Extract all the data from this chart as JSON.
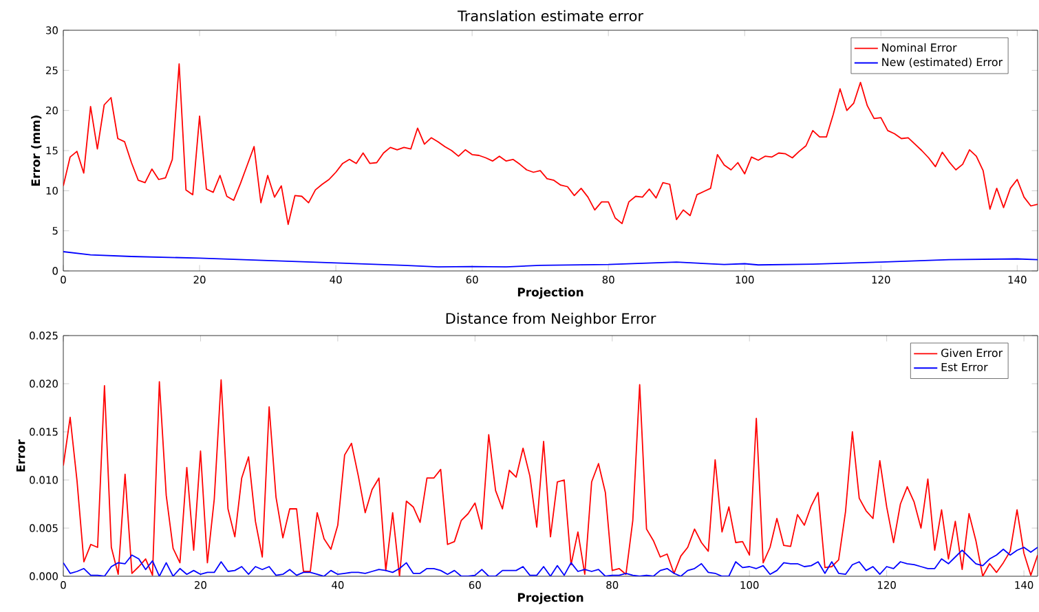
{
  "chart_data": [
    {
      "type": "line",
      "title": "Translation estimate error",
      "xlabel": "Projection",
      "ylabel": "Error (mm)",
      "xlim": [
        0,
        143
      ],
      "ylim": [
        0,
        30
      ],
      "xticks": [
        0,
        20,
        40,
        60,
        80,
        100,
        120,
        140
      ],
      "yticks": [
        0,
        5,
        10,
        15,
        20,
        25,
        30
      ],
      "legend": "top right",
      "grid": false,
      "x": [
        0,
        1,
        2,
        3,
        4,
        5,
        6,
        7,
        8,
        9,
        10,
        11,
        12,
        13,
        14,
        15,
        16,
        17,
        18,
        19,
        20,
        21,
        22,
        23,
        24,
        25,
        26,
        27,
        28,
        29,
        30,
        31,
        32,
        33,
        34,
        35,
        36,
        37,
        38,
        39,
        40,
        41,
        42,
        43,
        44,
        45,
        46,
        47,
        48,
        49,
        50,
        51,
        52,
        53,
        54,
        55,
        56,
        57,
        58,
        59,
        60,
        61,
        62,
        63,
        64,
        65,
        66,
        67,
        68,
        69,
        70,
        71,
        72,
        73,
        74,
        75,
        76,
        77,
        78,
        79,
        80,
        81,
        82,
        83,
        84,
        85,
        86,
        87,
        88,
        89,
        90,
        91,
        92,
        93,
        94,
        95,
        96,
        97,
        98,
        99,
        100,
        101,
        102,
        103,
        104,
        105,
        106,
        107,
        108,
        109,
        110,
        111,
        112,
        113,
        114,
        115,
        116,
        117,
        118,
        119,
        120,
        121,
        122,
        123,
        124,
        125,
        126,
        127,
        128,
        129,
        130,
        131,
        132,
        133,
        134,
        135,
        136,
        137,
        138,
        139,
        140,
        141,
        142,
        143
      ],
      "series": [
        {
          "name": "Nominal Error",
          "color": "#ff0000",
          "values": [
            10.6,
            14.2,
            14.9,
            12.2,
            20.5,
            15.2,
            20.7,
            21.6,
            16.5,
            16.1,
            13.5,
            11.3,
            11.0,
            12.7,
            11.4,
            11.6,
            13.9,
            25.8,
            10.1,
            9.5,
            19.3,
            10.2,
            9.8,
            11.9,
            9.3,
            8.8,
            10.9,
            13.2,
            15.5,
            8.5,
            11.9,
            9.2,
            10.6,
            5.8,
            9.4,
            9.3,
            8.5,
            10.1,
            10.8,
            11.4,
            12.3,
            13.4,
            13.9,
            13.4,
            14.7,
            13.4,
            13.5,
            14.7,
            15.4,
            15.1,
            15.4,
            15.2,
            17.8,
            15.8,
            16.6,
            16.1,
            15.5,
            15.0,
            14.3,
            15.1,
            14.5,
            14.4,
            14.1,
            13.7,
            14.3,
            13.7,
            13.9,
            13.3,
            12.6,
            12.3,
            12.5,
            11.5,
            11.3,
            10.7,
            10.5,
            9.4,
            10.3,
            9.2,
            7.6,
            8.6,
            8.6,
            6.6,
            5.9,
            8.6,
            9.3,
            9.2,
            10.2,
            9.1,
            11.0,
            10.8,
            6.4,
            7.6,
            6.9,
            9.5,
            9.9,
            10.3,
            14.5,
            13.2,
            12.6,
            13.5,
            12.1,
            14.2,
            13.8,
            14.3,
            14.2,
            14.7,
            14.6,
            14.1,
            14.9,
            15.6,
            17.5,
            16.7,
            16.7,
            19.5,
            22.7,
            20.0,
            20.9,
            23.5,
            20.6,
            19.0,
            19.1,
            17.5,
            17.1,
            16.5,
            16.6,
            15.8,
            15.0,
            14.1,
            13.0,
            14.8,
            13.6,
            12.6,
            13.3,
            15.1,
            14.3,
            12.5,
            7.7,
            10.3,
            7.9,
            10.3,
            11.4,
            9.2,
            8.1,
            8.3
          ]
        },
        {
          "name": "New (estimated) Error",
          "color": "#0000ff",
          "x": [
            0,
            4,
            10,
            20,
            30,
            40,
            50,
            55,
            60,
            65,
            70,
            80,
            90,
            97,
            100,
            102,
            110,
            120,
            130,
            140,
            143
          ],
          "values": [
            2.4,
            2.0,
            1.8,
            1.6,
            1.3,
            1.0,
            0.7,
            0.5,
            0.55,
            0.5,
            0.7,
            0.8,
            1.1,
            0.8,
            0.9,
            0.75,
            0.85,
            1.1,
            1.4,
            1.5,
            1.4
          ]
        }
      ]
    },
    {
      "type": "line",
      "title": "Distance from Neighbor Error",
      "xlabel": "Projection",
      "ylabel": "Error",
      "xlim": [
        0,
        142
      ],
      "ylim": [
        0,
        0.025
      ],
      "xticks": [
        0,
        20,
        40,
        60,
        80,
        100,
        120,
        140
      ],
      "yticks": [
        {
          "value": 0,
          "label": "0.000"
        },
        {
          "value": 0.005,
          "label": "0.005"
        },
        {
          "value": 0.01,
          "label": "0.010"
        },
        {
          "value": 0.015,
          "label": "0.015"
        },
        {
          "value": 0.02,
          "label": "0.020"
        },
        {
          "value": 0.025,
          "label": "0.025"
        }
      ],
      "legend": "top right",
      "grid": false,
      "x": [
        0,
        1,
        2,
        3,
        4,
        5,
        6,
        7,
        8,
        9,
        10,
        11,
        12,
        13,
        14,
        15,
        16,
        17,
        18,
        19,
        20,
        21,
        22,
        23,
        24,
        25,
        26,
        27,
        28,
        29,
        30,
        31,
        32,
        33,
        34,
        35,
        36,
        37,
        38,
        39,
        40,
        41,
        42,
        43,
        44,
        45,
        46,
        47,
        48,
        49,
        50,
        51,
        52,
        53,
        54,
        55,
        56,
        57,
        58,
        59,
        60,
        61,
        62,
        63,
        64,
        65,
        66,
        67,
        68,
        69,
        70,
        71,
        72,
        73,
        74,
        75,
        76,
        77,
        78,
        79,
        80,
        81,
        82,
        83,
        84,
        85,
        86,
        87,
        88,
        89,
        90,
        91,
        92,
        93,
        94,
        95,
        96,
        97,
        98,
        99,
        100,
        101,
        102,
        103,
        104,
        105,
        106,
        107,
        108,
        109,
        110,
        111,
        112,
        113,
        114,
        115,
        116,
        117,
        118,
        119,
        120,
        121,
        122,
        123,
        124,
        125,
        126,
        127,
        128,
        129,
        130,
        131,
        132,
        133,
        134,
        135,
        136,
        137,
        138,
        139,
        140,
        141,
        142
      ],
      "series": [
        {
          "name": "Given Error",
          "color": "#ff0000",
          "values": [
            0.0115,
            0.0165,
            0.0099,
            0.0015,
            0.0033,
            0.003,
            0.0198,
            0.003,
            0.0002,
            0.0106,
            0.0003,
            0.001,
            0.0018,
            0.0001,
            0.0202,
            0.0084,
            0.0029,
            0.0014,
            0.0113,
            0.0027,
            0.013,
            0.0014,
            0.008,
            0.0204,
            0.007,
            0.0041,
            0.0102,
            0.0124,
            0.0057,
            0.002,
            0.0176,
            0.0082,
            0.004,
            0.007,
            0.007,
            0.0005,
            0.0005,
            0.0066,
            0.0039,
            0.0028,
            0.0053,
            0.0126,
            0.0138,
            0.0104,
            0.0066,
            0.009,
            0.0102,
            0.0006,
            0.0066,
            0,
            0.0078,
            0.0072,
            0.0056,
            0.0102,
            0.0102,
            0.0111,
            0.0033,
            0.0036,
            0.0058,
            0.0065,
            0.0076,
            0.0049,
            0.0147,
            0.0089,
            0.007,
            0.011,
            0.0103,
            0.0133,
            0.0104,
            0.0051,
            0.014,
            0.0041,
            0.0098,
            0.01,
            0.0012,
            0.0046,
            0.0002,
            0.0098,
            0.0117,
            0.0087,
            0.0006,
            0.0008,
            0.0002,
            0.0058,
            0.0199,
            0.0049,
            0.0037,
            0.002,
            0.0023,
            0.0003,
            0.0021,
            0.003,
            0.0049,
            0.0035,
            0.0026,
            0.0121,
            0.0046,
            0.0072,
            0.0035,
            0.0036,
            0.0022,
            0.0164,
            0.0014,
            0.003,
            0.006,
            0.0032,
            0.0031,
            0.0064,
            0.0053,
            0.0073,
            0.0087,
            0.0009,
            0.001,
            0.0017,
            0.0067,
            0.015,
            0.0081,
            0.0068,
            0.006,
            0.012,
            0.0072,
            0.0035,
            0.0075,
            0.0093,
            0.0077,
            0.005,
            0.0101,
            0.0027,
            0.0069,
            0.0018,
            0.0057,
            0.0007,
            0.0065,
            0.0037,
            0,
            0.0013,
            0.0004,
            0.0014,
            0.0026,
            0.0069,
            0.0024,
            0.0001,
            0.0022
          ]
        },
        {
          "name": "Est Error",
          "color": "#0000ff",
          "values": [
            0.0014,
            0.0003,
            0.0005,
            0.0008,
            0.0001,
            0.0001,
            0,
            0.001,
            0.0014,
            0.0013,
            0.0022,
            0.0018,
            0.0007,
            0.0016,
            0,
            0.0014,
            0,
            0.0008,
            0.0002,
            0.0006,
            0.0002,
            0.0004,
            0.0004,
            0.0015,
            0.0005,
            0.0006,
            0.001,
            0.0002,
            0.001,
            0.0007,
            0.001,
            0.0001,
            0.0002,
            0.0007,
            0.0001,
            0.0004,
            0.0004,
            0.0002,
            0,
            0.0006,
            0.0002,
            0.0003,
            0.0004,
            0.0004,
            0.0003,
            0.0005,
            0.0007,
            0.0006,
            0.0004,
            0.0008,
            0.0014,
            0.0003,
            0.0003,
            0.0008,
            0.0008,
            0.0006,
            0.0002,
            0.0006,
            0,
            0,
            0.0001,
            0.0007,
            0,
            0,
            0.0006,
            0.0006,
            0.0006,
            0.001,
            0.0001,
            0.0001,
            0.001,
            0,
            0.0011,
            0.0001,
            0.0014,
            0.0005,
            0.0007,
            0.0005,
            0.0007,
            0,
            0.0001,
            0.0001,
            0.0003,
            0.0001,
            0,
            0.0001,
            0,
            0.0006,
            0.0008,
            0.0003,
            0,
            0.0006,
            0.0008,
            0.0013,
            0.0004,
            0.0003,
            0,
            0,
            0.0015,
            0.0009,
            0.001,
            0.0008,
            0.0011,
            0.0002,
            0.0006,
            0.0014,
            0.0013,
            0.0013,
            0.001,
            0.0011,
            0.0015,
            0.0003,
            0.0015,
            0.0003,
            0.0002,
            0.0012,
            0.0015,
            0.0006,
            0.001,
            0.0002,
            0.001,
            0.0008,
            0.0015,
            0.0013,
            0.0012,
            0.001,
            0.0008,
            0.0008,
            0.0018,
            0.0013,
            0.002,
            0.0027,
            0.002,
            0.0013,
            0.0011,
            0.0018,
            0.0022,
            0.0028,
            0.0022,
            0.0027,
            0.003,
            0.0025,
            0.003
          ]
        }
      ]
    }
  ]
}
